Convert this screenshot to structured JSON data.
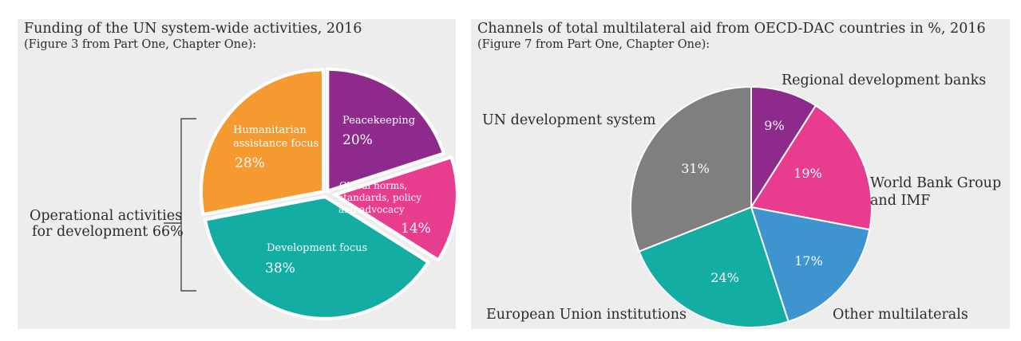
{
  "chart_data": [
    {
      "type": "pie",
      "title": "Funding of the UN system-wide activities, 2016",
      "subtitle": "(Figure 3 from Part One, Chapter One):",
      "slices": [
        {
          "label": "Peacekeeping",
          "value": 20,
          "value_label": "20%",
          "color": "#8e2a8b"
        },
        {
          "label": "Global norms, standards, policy and advocacy",
          "value": 14,
          "value_label": "14%",
          "color": "#e83d8f"
        },
        {
          "label": "Development focus",
          "value": 38,
          "value_label": "38%",
          "color": "#14ada4"
        },
        {
          "label": "Humanitarian assistance focus",
          "value": 28,
          "value_label": "28%",
          "color": "#f59a31"
        }
      ],
      "bracket_label": "Operational activities for development 66%",
      "slice_text": {
        "peacekeeping": "Peacekeeping",
        "global_line1": "Global norms,",
        "global_line2": "standards, policy",
        "global_line3": "and advocacy",
        "development": "Development focus",
        "humanitarian_line1": "Humanitarian",
        "humanitarian_line2": "assistance focus",
        "bracket_line1": "Operational activities",
        "bracket_line2": "for development 66%"
      }
    },
    {
      "type": "pie",
      "title": "Channels of total multilateral aid from OECD-DAC countries in %, 2016",
      "subtitle": "(Figure 7 from Part One, Chapter One):",
      "slices": [
        {
          "label": "Regional development banks",
          "value": 9,
          "value_label": "9%",
          "color": "#8e2a8b"
        },
        {
          "label": "World Bank Group and IMF",
          "value": 19,
          "value_label": "19%",
          "color": "#e83d8f"
        },
        {
          "label": "Other multilaterals",
          "value": 17,
          "value_label": "17%",
          "color": "#3d94cf"
        },
        {
          "label": "European Union institutions",
          "value": 24,
          "value_label": "24%",
          "color": "#14ada4"
        },
        {
          "label": "UN development system",
          "value": 31,
          "value_label": "31%",
          "color": "#7f7f7f"
        }
      ],
      "outer_text": {
        "world_bank_line1": "World Bank Group",
        "world_bank_line2": "and IMF"
      }
    }
  ]
}
